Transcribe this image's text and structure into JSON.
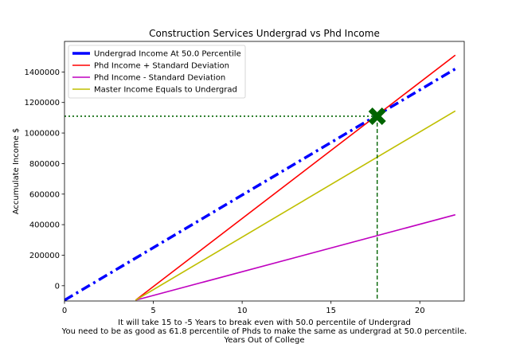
{
  "chart_data": {
    "type": "line",
    "title": "Construction Services Undergrad vs Phd Income",
    "ylabel": "Accumulate Income $",
    "xlabel_lines": [
      "It will take 15 to -5 Years to break even with 50.0 percentile of Undergrad",
      "You need to be as good as 61.8 percentile of Phds to make the same as undergrad at 50.0 percentile.",
      "Years Out of College"
    ],
    "xlim": [
      0,
      22.5
    ],
    "ylim": [
      -100000,
      1600000
    ],
    "xticks": [
      0,
      5,
      10,
      15,
      20
    ],
    "yticks": [
      0,
      200000,
      400000,
      600000,
      800000,
      1000000,
      1200000,
      1400000
    ],
    "legend_position": "upper left",
    "grid": false,
    "series": [
      {
        "name": "Undergrad Income At 50.0 Percentile",
        "color": "#0000ff",
        "style": "dashdot",
        "x": [
          0,
          22
        ],
        "y": [
          -95000,
          1420000
        ]
      },
      {
        "name": "Phd Income + Standard Deviation",
        "color": "#ff0000",
        "style": "solid",
        "x": [
          4,
          22
        ],
        "y": [
          -95000,
          1510000
        ]
      },
      {
        "name": "Phd Income - Standard Deviation",
        "color": "#bf00bf",
        "style": "solid",
        "x": [
          4,
          22
        ],
        "y": [
          -95000,
          465000
        ]
      },
      {
        "name": "Master Income Equals to Undergrad",
        "color": "#bfbf00",
        "style": "solid",
        "x": [
          4,
          22
        ],
        "y": [
          -95000,
          1145000
        ]
      }
    ],
    "break_even": {
      "x": 17.6,
      "y": 1110000,
      "marker": "X",
      "color": "#006400"
    }
  }
}
